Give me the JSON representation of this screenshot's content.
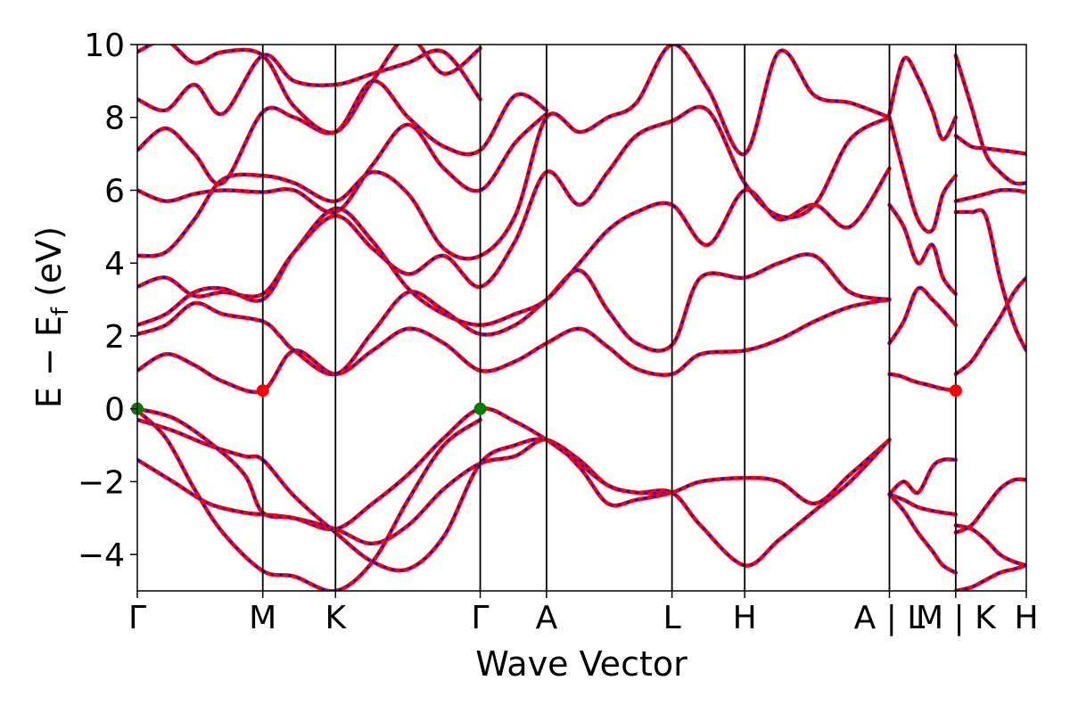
{
  "chart_data": {
    "type": "line",
    "xlabel": "Wave Vector",
    "ylabel": "E − E",
    "ylabel_sub": "f",
    "ylabel_unit": "(eV)",
    "ylim": [
      -5,
      10
    ],
    "yticks": [
      -4,
      -2,
      0,
      2,
      4,
      6,
      8,
      10
    ],
    "ytick_labels": [
      "−4",
      "−2",
      "0",
      "2",
      "4",
      "6",
      "8",
      "10"
    ],
    "xlim": [
      0,
      12.47
    ],
    "kpoints": [
      {
        "label": "Γ",
        "x": 0.0
      },
      {
        "label": "M",
        "x": 1.76
      },
      {
        "label": "K",
        "x": 2.78
      },
      {
        "label": "Γ",
        "x": 4.81
      },
      {
        "label": "A",
        "x": 5.74
      },
      {
        "label": "L",
        "x": 7.5
      },
      {
        "label": "H",
        "x": 8.52
      },
      {
        "label": "A | L",
        "x": 10.55
      },
      {
        "label": "M | K",
        "x": 11.48
      },
      {
        "label": "H",
        "x": 12.47
      }
    ],
    "grid": false,
    "series_colors": {
      "primary": "#ff0000",
      "overlay": "#0000ff"
    },
    "bands": [
      {
        "x": [
          0,
          0.5,
          1.0,
          1.5,
          1.76,
          2.2,
          2.78,
          3.3,
          3.8,
          4.3,
          4.81,
          5.3,
          5.74,
          6.2,
          6.6,
          7.0,
          7.5,
          7.9,
          8.52,
          9.0,
          9.5,
          10.0,
          10.55
        ],
        "y": [
          -1.4,
          -2.0,
          -2.6,
          -2.85,
          -2.9,
          -3.0,
          -3.3,
          -3.7,
          -3.2,
          -2.2,
          -1.5,
          -1.3,
          -0.85,
          -1.6,
          -2.6,
          -2.5,
          -2.3,
          -2.0,
          -1.9,
          -2.0,
          -2.6,
          -1.8,
          -0.85
        ]
      },
      {
        "x": [
          0,
          0.5,
          1.0,
          1.5,
          1.76,
          2.2,
          2.78,
          3.3,
          3.8,
          4.3,
          4.81,
          5.3,
          5.74,
          6.2,
          6.6,
          7.0,
          7.5,
          7.9,
          8.52,
          9.0,
          9.5,
          10.0,
          10.55
        ],
        "y": [
          -0.3,
          -0.6,
          -1.0,
          -1.3,
          -1.4,
          -2.4,
          -3.4,
          -4.2,
          -4.4,
          -3.5,
          -1.5,
          -1.0,
          -0.85,
          -1.4,
          -2.1,
          -2.3,
          -2.3,
          -3.2,
          -4.3,
          -3.6,
          -2.8,
          -2.0,
          -0.85
        ]
      },
      {
        "x": [
          0,
          0.5,
          1.0,
          1.5,
          1.76,
          2.2,
          2.78,
          3.3,
          3.8,
          4.3,
          4.81,
          5.3,
          5.74,
          6.2,
          6.6,
          7.0,
          7.5
        ],
        "y": [
          0.0,
          -0.25,
          -0.9,
          -1.8,
          -2.85,
          -3.0,
          -3.3,
          -2.6,
          -1.8,
          -0.8,
          0.0,
          -0.35,
          -0.85,
          -1.5,
          -2.1,
          -2.3,
          -2.3
        ]
      },
      {
        "x": [
          0,
          0.4,
          0.8,
          1.2,
          1.76,
          2.2,
          2.78,
          3.3,
          3.8,
          4.3,
          4.81
        ],
        "y": [
          -0.05,
          -0.8,
          -2.2,
          -3.4,
          -4.45,
          -4.6,
          -5.0,
          -4.2,
          -2.5,
          -1.0,
          -0.3
        ]
      },
      {
        "x": [
          0,
          0.4,
          0.8,
          1.2,
          1.76,
          2.2,
          2.78,
          3.3,
          3.8,
          4.3,
          4.81,
          5.3,
          5.74,
          6.2,
          6.6,
          7.0,
          7.5,
          7.9,
          8.52,
          9.0,
          9.5,
          10.0,
          10.55
        ],
        "y": [
          1.05,
          1.5,
          1.2,
          0.75,
          0.5,
          1.6,
          0.95,
          1.6,
          2.2,
          1.8,
          1.05,
          1.3,
          1.8,
          2.2,
          1.7,
          1.1,
          0.95,
          1.5,
          1.6,
          1.9,
          2.4,
          2.8,
          3.0
        ]
      },
      {
        "x": [
          0,
          0.4,
          0.8,
          1.2,
          1.76,
          2.0,
          2.2,
          2.78,
          3.3,
          3.8,
          4.3,
          4.81,
          5.3,
          5.74,
          6.2,
          6.6,
          7.0,
          7.5,
          7.9,
          8.52,
          9.0,
          9.5,
          10.0,
          10.55
        ],
        "y": [
          2.05,
          2.3,
          2.9,
          2.6,
          2.4,
          2.0,
          1.6,
          0.95,
          2.1,
          3.2,
          2.7,
          2.05,
          2.3,
          3.0,
          3.8,
          2.7,
          1.8,
          1.75,
          3.6,
          3.6,
          4.0,
          4.2,
          3.2,
          3.0
        ]
      },
      {
        "x": [
          0,
          0.4,
          0.8,
          1.2,
          1.76,
          2.2,
          2.78,
          3.3,
          3.8,
          4.3,
          4.81,
          5.3,
          5.74,
          6.2,
          6.6,
          7.0,
          7.5,
          8.0,
          8.52,
          9.0,
          9.5,
          10.0,
          10.55
        ],
        "y": [
          2.3,
          2.6,
          3.2,
          3.3,
          3.0,
          4.3,
          5.5,
          4.6,
          3.3,
          2.6,
          2.3,
          2.6,
          3.0,
          4.0,
          4.9,
          5.4,
          5.6,
          4.5,
          6.0,
          5.2,
          5.6,
          5.0,
          6.6
        ]
      },
      {
        "x": [
          0,
          0.4,
          0.8,
          1.2,
          1.76,
          2.2,
          2.78,
          3.3,
          3.8,
          4.3,
          4.81,
          5.3,
          5.74,
          6.2,
          6.6,
          7.0,
          7.5,
          8.0,
          8.52,
          9.0,
          9.5,
          10.0,
          10.55
        ],
        "y": [
          3.35,
          3.6,
          3.1,
          3.2,
          3.15,
          4.3,
          5.3,
          4.4,
          3.7,
          4.2,
          3.35,
          4.6,
          6.5,
          5.6,
          6.5,
          7.5,
          7.9,
          8.2,
          6.2,
          5.3,
          5.6,
          7.4,
          8.0
        ]
      },
      {
        "x": [
          0,
          0.4,
          0.8,
          1.2,
          1.76,
          2.2,
          2.78,
          3.3,
          3.8,
          4.3,
          4.81,
          5.3,
          5.74,
          6.2,
          6.6,
          7.0,
          7.5,
          8.0,
          8.52,
          9.0,
          9.5,
          10.0,
          10.55
        ],
        "y": [
          4.2,
          4.3,
          5.2,
          6.3,
          6.4,
          6.2,
          5.7,
          6.5,
          5.9,
          4.4,
          4.2,
          5.3,
          8.0,
          7.6,
          8.0,
          8.4,
          10.0,
          8.8,
          7.0,
          9.8,
          8.6,
          8.4,
          8.0
        ]
      },
      {
        "x": [
          0,
          0.4,
          0.8,
          1.2,
          1.76,
          2.2,
          2.78,
          3.3,
          3.8,
          4.3,
          4.81,
          5.3,
          5.74
        ],
        "y": [
          6.0,
          5.7,
          5.9,
          6.0,
          5.95,
          6.0,
          5.4,
          6.7,
          7.8,
          6.6,
          6.0,
          7.3,
          8.1
        ]
      },
      {
        "x": [
          0,
          0.4,
          0.8,
          1.2,
          1.76,
          2.2,
          2.78,
          3.3,
          3.8,
          4.3,
          4.81,
          5.3,
          5.74
        ],
        "y": [
          7.1,
          7.7,
          7.0,
          6.2,
          8.15,
          8.0,
          7.6,
          9.0,
          8.0,
          7.2,
          7.1,
          8.6,
          8.2
        ]
      },
      {
        "x": [
          0,
          0.4,
          0.8,
          1.2,
          1.76,
          2.2,
          2.78,
          3.3,
          3.8,
          4.3,
          4.81
        ],
        "y": [
          8.5,
          8.2,
          8.9,
          8.1,
          9.7,
          9.0,
          8.9,
          9.2,
          9.5,
          9.8,
          8.5
        ]
      },
      {
        "x": [
          0,
          0.4,
          0.8,
          1.2,
          1.76,
          2.2,
          2.78,
          3.3,
          3.8,
          4.3,
          4.81
        ],
        "y": [
          9.8,
          10.1,
          9.5,
          9.8,
          9.7,
          8.3,
          7.6,
          9.0,
          10.2,
          9.2,
          9.9
        ]
      },
      {
        "x": [
          10.55,
          10.75,
          10.95,
          11.15,
          11.3,
          11.48
        ],
        "y": [
          -2.35,
          -2.0,
          -2.3,
          -1.6,
          -1.4,
          -1.4
        ]
      },
      {
        "x": [
          10.55,
          10.75,
          10.95,
          11.15,
          11.3,
          11.48
        ],
        "y": [
          -2.35,
          -2.8,
          -3.4,
          -3.9,
          -4.3,
          -4.5
        ]
      },
      {
        "x": [
          10.55,
          10.75,
          10.95,
          11.15,
          11.3,
          11.48
        ],
        "y": [
          -2.35,
          -2.5,
          -2.7,
          -2.8,
          -2.85,
          -2.9
        ]
      },
      {
        "x": [
          10.55,
          10.7,
          10.9,
          11.1,
          11.3,
          11.48
        ],
        "y": [
          0.95,
          0.9,
          0.75,
          0.65,
          0.55,
          0.5
        ]
      },
      {
        "x": [
          10.55,
          10.75,
          10.95,
          11.15,
          11.3,
          11.48
        ],
        "y": [
          1.8,
          2.4,
          3.3,
          3.0,
          2.7,
          2.3
        ]
      },
      {
        "x": [
          10.55,
          10.75,
          10.95,
          11.15,
          11.3,
          11.48
        ],
        "y": [
          5.6,
          5.0,
          4.0,
          4.5,
          3.6,
          3.15
        ]
      },
      {
        "x": [
          10.55,
          10.75,
          10.95,
          11.15,
          11.3,
          11.48
        ],
        "y": [
          8.0,
          6.5,
          5.2,
          4.9,
          5.9,
          6.4
        ]
      },
      {
        "x": [
          10.55,
          10.75,
          10.95,
          11.15,
          11.3,
          11.48
        ],
        "y": [
          8.1,
          9.6,
          9.1,
          8.2,
          7.4,
          8.0
        ]
      },
      {
        "x": [
          11.48,
          11.7,
          11.9,
          12.1,
          12.3,
          12.47
        ],
        "y": [
          -5.0,
          -4.9,
          -4.7,
          -4.5,
          -4.4,
          -4.3
        ]
      },
      {
        "x": [
          11.48,
          11.7,
          11.9,
          12.1,
          12.3,
          12.47
        ],
        "y": [
          -3.2,
          -3.3,
          -3.6,
          -4.0,
          -4.2,
          -4.3
        ]
      },
      {
        "x": [
          11.48,
          11.7,
          11.9,
          12.1,
          12.3,
          12.47
        ],
        "y": [
          -3.4,
          -3.2,
          -2.7,
          -2.2,
          -1.95,
          -1.95
        ]
      },
      {
        "x": [
          11.48,
          11.7,
          11.9,
          12.1,
          12.3,
          12.47
        ],
        "y": [
          0.95,
          1.3,
          1.9,
          2.5,
          3.2,
          3.6
        ]
      },
      {
        "x": [
          11.48,
          11.7,
          11.9,
          12.1,
          12.3,
          12.47
        ],
        "y": [
          5.4,
          5.4,
          5.3,
          3.6,
          2.3,
          1.6
        ]
      },
      {
        "x": [
          11.48,
          11.7,
          11.9,
          12.1,
          12.3,
          12.47
        ],
        "y": [
          5.7,
          5.8,
          5.9,
          6.0,
          6.0,
          5.95
        ]
      },
      {
        "x": [
          11.48,
          11.7,
          11.9,
          12.1,
          12.3,
          12.47
        ],
        "y": [
          7.5,
          7.2,
          7.15,
          7.1,
          7.05,
          7.0
        ]
      },
      {
        "x": [
          11.48,
          11.7,
          11.9,
          12.1,
          12.3,
          12.47
        ],
        "y": [
          9.7,
          8.3,
          7.0,
          6.5,
          6.2,
          6.2
        ]
      }
    ],
    "markers": [
      {
        "x": 0.0,
        "y": 0.0,
        "color": "#008000"
      },
      {
        "x": 4.81,
        "y": 0.0,
        "color": "#008000"
      },
      {
        "x": 1.76,
        "y": 0.5,
        "color": "#ff0000"
      },
      {
        "x": 11.48,
        "y": 0.5,
        "color": "#ff0000"
      }
    ]
  }
}
